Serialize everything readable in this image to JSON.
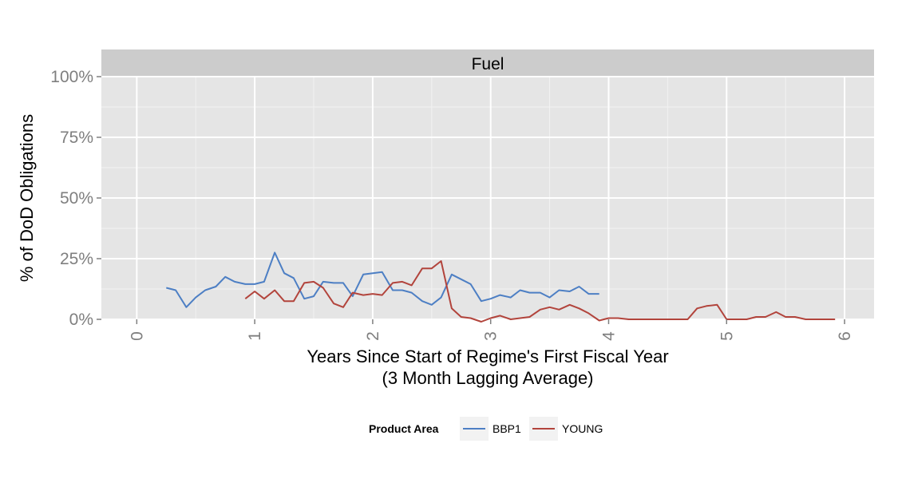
{
  "chart_data": {
    "type": "line",
    "facet_label": "Fuel",
    "xlabel_line1": "Years Since Start of Regime's First Fiscal Year",
    "xlabel_line2": "(3 Month Lagging Average)",
    "ylabel": "% of DoD Obligations",
    "xlim": [
      -0.3,
      6.25
    ],
    "ylim": [
      0,
      1.0
    ],
    "x_ticks": [
      0,
      1,
      2,
      3,
      4,
      5,
      6
    ],
    "x_tick_labels": [
      "0",
      "1",
      "2",
      "3",
      "4",
      "5",
      "6"
    ],
    "y_ticks": [
      0,
      0.25,
      0.5,
      0.75,
      1.0
    ],
    "y_tick_labels": [
      "0%",
      "25%",
      "50%",
      "75%",
      "100%"
    ],
    "legend_title": "Product Area",
    "legend_position": "bottom",
    "grid": true,
    "series": [
      {
        "name": "BBP1",
        "color": "#4d7fc4",
        "x": [
          0.25,
          0.33,
          0.42,
          0.5,
          0.58,
          0.67,
          0.75,
          0.83,
          0.92,
          1.0,
          1.08,
          1.17,
          1.25,
          1.33,
          1.42,
          1.5,
          1.58,
          1.67,
          1.75,
          1.83,
          1.92,
          2.0,
          2.08,
          2.17,
          2.25,
          2.33,
          2.42,
          2.5,
          2.58,
          2.67,
          2.75,
          2.83,
          2.92,
          3.0,
          3.08,
          3.17,
          3.25,
          3.33,
          3.42,
          3.5,
          3.58,
          3.67,
          3.75,
          3.83,
          3.92
        ],
        "values": [
          0.13,
          0.12,
          0.05,
          0.09,
          0.12,
          0.135,
          0.175,
          0.155,
          0.145,
          0.145,
          0.155,
          0.275,
          0.19,
          0.17,
          0.085,
          0.095,
          0.155,
          0.15,
          0.15,
          0.095,
          0.185,
          0.19,
          0.195,
          0.12,
          0.12,
          0.11,
          0.075,
          0.06,
          0.09,
          0.185,
          0.165,
          0.145,
          0.075,
          0.085,
          0.1,
          0.09,
          0.12,
          0.11,
          0.11,
          0.09,
          0.12,
          0.115,
          0.135,
          0.105,
          0.105
        ]
      },
      {
        "name": "YOUNG",
        "color": "#b2443c",
        "x": [
          0.92,
          1.0,
          1.08,
          1.17,
          1.25,
          1.33,
          1.42,
          1.5,
          1.58,
          1.67,
          1.75,
          1.83,
          1.92,
          2.0,
          2.08,
          2.17,
          2.25,
          2.33,
          2.42,
          2.5,
          2.58,
          2.67,
          2.75,
          2.83,
          2.92,
          3.0,
          3.08,
          3.17,
          3.25,
          3.33,
          3.42,
          3.5,
          3.58,
          3.67,
          3.75,
          3.83,
          3.92,
          4.0,
          4.08,
          4.17,
          4.25,
          4.33,
          4.42,
          4.5,
          4.58,
          4.67,
          4.75,
          4.83,
          4.92,
          5.0,
          5.08,
          5.17,
          5.25,
          5.33,
          5.42,
          5.5,
          5.58,
          5.67,
          5.75,
          5.83,
          5.92
        ],
        "values": [
          0.085,
          0.115,
          0.085,
          0.12,
          0.075,
          0.075,
          0.15,
          0.155,
          0.13,
          0.065,
          0.05,
          0.11,
          0.1,
          0.105,
          0.1,
          0.15,
          0.155,
          0.14,
          0.21,
          0.21,
          0.24,
          0.045,
          0.01,
          0.005,
          -0.01,
          0.005,
          0.015,
          0.0,
          0.005,
          0.01,
          0.04,
          0.05,
          0.04,
          0.06,
          0.045,
          0.025,
          -0.005,
          0.005,
          0.005,
          0.0,
          0.0,
          0.0,
          0.0,
          0.0,
          0.0,
          0.0,
          0.045,
          0.055,
          0.06,
          0.0,
          0.0,
          0.0,
          0.01,
          0.01,
          0.03,
          0.01,
          0.01,
          0.0,
          0.0,
          0.0,
          0.0
        ]
      }
    ]
  }
}
